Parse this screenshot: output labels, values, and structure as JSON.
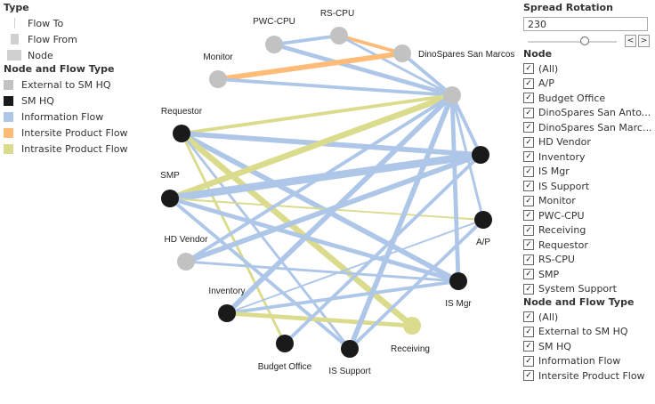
{
  "legend": {
    "type_title": "Type",
    "type_items": [
      {
        "key": "flow-to",
        "label": "Flow To"
      },
      {
        "key": "flow-from",
        "label": "Flow From"
      },
      {
        "key": "node",
        "label": "Node"
      }
    ],
    "nft_title": "Node and Flow Type",
    "nft_items": [
      {
        "label": "External to SM HQ",
        "color": "#c2c2c2"
      },
      {
        "label": "SM HQ",
        "color": "#1a1a1a"
      },
      {
        "label": "Information Flow",
        "color": "#aec7e8"
      },
      {
        "label": "Intersite Product Flow",
        "color": "#ffbb78"
      },
      {
        "label": "Intrasite Product Flow",
        "color": "#dbdb8d"
      }
    ]
  },
  "colors": {
    "external": "#c2c2c2",
    "hq": "#1a1a1a",
    "information": "#aec7e8",
    "intersite": "#ffbb78",
    "intrasite": "#dbdb8d"
  },
  "graph": {
    "nodes": [
      {
        "id": "PWC-CPU",
        "label": "PWC-CPU",
        "type": "external"
      },
      {
        "id": "RS-CPU",
        "label": "RS-CPU",
        "type": "external"
      },
      {
        "id": "DinoSpares San Marcos",
        "label": "DinoSpares San Marcos",
        "type": "external"
      },
      {
        "id": "Monitor",
        "label": "Monitor",
        "type": "external"
      },
      {
        "id": "System Support",
        "label": "",
        "type": "external"
      },
      {
        "id": "Requestor",
        "label": "Requestor",
        "type": "hq"
      },
      {
        "id": "DinoSpares San Antonio",
        "label": "",
        "type": "hq"
      },
      {
        "id": "SMP",
        "label": "SMP",
        "type": "hq"
      },
      {
        "id": "A/P",
        "label": "A/P",
        "type": "hq"
      },
      {
        "id": "HD Vendor",
        "label": "HD Vendor",
        "type": "external"
      },
      {
        "id": "IS Mgr",
        "label": "IS Mgr",
        "type": "hq"
      },
      {
        "id": "Inventory",
        "label": "Inventory",
        "type": "hq"
      },
      {
        "id": "Receiving",
        "label": "Receiving",
        "type": "intrasite"
      },
      {
        "id": "Budget Office",
        "label": "Budget Office",
        "type": "hq"
      },
      {
        "id": "IS Support",
        "label": "IS Support",
        "type": "hq"
      }
    ],
    "links": [
      {
        "source": "PWC-CPU",
        "target": "RS-CPU",
        "type": "information",
        "weight": 3
      },
      {
        "source": "PWC-CPU",
        "target": "System Support",
        "type": "information",
        "weight": 4
      },
      {
        "source": "RS-CPU",
        "target": "DinoSpares San Marcos",
        "type": "intersite",
        "weight": 3
      },
      {
        "source": "RS-CPU",
        "target": "System Support",
        "type": "information",
        "weight": 2
      },
      {
        "source": "DinoSpares San Marcos",
        "target": "System Support",
        "type": "information",
        "weight": 3
      },
      {
        "source": "Monitor",
        "target": "DinoSpares San Marcos",
        "type": "intersite",
        "weight": 5
      },
      {
        "source": "Monitor",
        "target": "System Support",
        "type": "information",
        "weight": 3
      },
      {
        "source": "Requestor",
        "target": "System Support",
        "type": "intrasite",
        "weight": 3
      },
      {
        "source": "Requestor",
        "target": "DinoSpares San Antonio",
        "type": "information",
        "weight": 5
      },
      {
        "source": "Requestor",
        "target": "IS Mgr",
        "type": "information",
        "weight": 5
      },
      {
        "source": "Requestor",
        "target": "Receiving",
        "type": "intrasite",
        "weight": 6
      },
      {
        "source": "Requestor",
        "target": "IS Support",
        "type": "information",
        "weight": 2
      },
      {
        "source": "Requestor",
        "target": "Budget Office",
        "type": "intrasite",
        "weight": 2
      },
      {
        "source": "SMP",
        "target": "System Support",
        "type": "intrasite",
        "weight": 6
      },
      {
        "source": "SMP",
        "target": "DinoSpares San Antonio",
        "type": "information",
        "weight": 8
      },
      {
        "source": "SMP",
        "target": "A/P",
        "type": "intrasite",
        "weight": 1
      },
      {
        "source": "SMP",
        "target": "IS Mgr",
        "type": "information",
        "weight": 4
      },
      {
        "source": "SMP",
        "target": "IS Support",
        "type": "information",
        "weight": 3
      },
      {
        "source": "HD Vendor",
        "target": "System Support",
        "type": "information",
        "weight": 3
      },
      {
        "source": "HD Vendor",
        "target": "DinoSpares San Antonio",
        "type": "information",
        "weight": 5
      },
      {
        "source": "HD Vendor",
        "target": "IS Mgr",
        "type": "information",
        "weight": 2
      },
      {
        "source": "Inventory",
        "target": "System Support",
        "type": "information",
        "weight": 5
      },
      {
        "source": "Inventory",
        "target": "A/P",
        "type": "information",
        "weight": 1
      },
      {
        "source": "Inventory",
        "target": "IS Mgr",
        "type": "information",
        "weight": 3
      },
      {
        "source": "Inventory",
        "target": "Receiving",
        "type": "intrasite",
        "weight": 4
      },
      {
        "source": "Budget Office",
        "target": "DinoSpares San Antonio",
        "type": "information",
        "weight": 3
      },
      {
        "source": "IS Support",
        "target": "System Support",
        "type": "information",
        "weight": 5
      },
      {
        "source": "IS Support",
        "target": "A/P",
        "type": "information",
        "weight": 3
      },
      {
        "source": "System Support",
        "target": "DinoSpares San Antonio",
        "type": "information",
        "weight": 3
      },
      {
        "source": "System Support",
        "target": "A/P",
        "type": "information",
        "weight": 2
      },
      {
        "source": "System Support",
        "target": "IS Mgr",
        "type": "information",
        "weight": 4
      }
    ]
  },
  "controls": {
    "spread_title": "Spread Rotation",
    "spread_value": "230",
    "spread_fraction": 0.64,
    "prev_label": "<",
    "next_label": ">",
    "node_filter": {
      "title": "Node",
      "items": [
        {
          "label": "(All)",
          "checked": true
        },
        {
          "label": "A/P",
          "checked": true
        },
        {
          "label": "Budget Office",
          "checked": true
        },
        {
          "label": "DinoSpares San Anto...",
          "checked": true
        },
        {
          "label": "DinoSpares San Marc...",
          "checked": true
        },
        {
          "label": "HD Vendor",
          "checked": true
        },
        {
          "label": "Inventory",
          "checked": true
        },
        {
          "label": "IS Mgr",
          "checked": true
        },
        {
          "label": "IS Support",
          "checked": true
        },
        {
          "label": "Monitor",
          "checked": true
        },
        {
          "label": "PWC-CPU",
          "checked": true
        },
        {
          "label": "Receiving",
          "checked": true
        },
        {
          "label": "Requestor",
          "checked": true
        },
        {
          "label": "RS-CPU",
          "checked": true
        },
        {
          "label": "SMP",
          "checked": true
        },
        {
          "label": "System Support",
          "checked": true
        }
      ]
    },
    "nft_filter": {
      "title": "Node and Flow Type",
      "items": [
        {
          "label": "(All)",
          "checked": true
        },
        {
          "label": "External to SM HQ",
          "checked": true
        },
        {
          "label": "SM HQ",
          "checked": true
        },
        {
          "label": "Information Flow",
          "checked": true
        },
        {
          "label": "Intersite Product Flow",
          "checked": true
        }
      ]
    }
  }
}
